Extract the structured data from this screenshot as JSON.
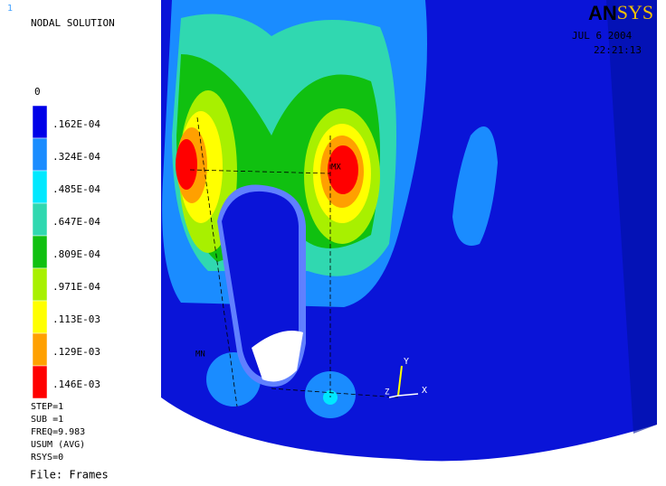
{
  "window_number": "1",
  "title": "NODAL SOLUTION",
  "logo": {
    "dark": "AN",
    "light": "SYS"
  },
  "date": "JUL  6 2004",
  "time": "22:21:13",
  "legend": {
    "top_label": "0",
    "levels": [
      {
        "label": ".162E-04",
        "color": "#0000e8"
      },
      {
        "label": ".324E-04",
        "color": "#1a8cff"
      },
      {
        "label": ".485E-04",
        "color": "#00e8ff"
      },
      {
        "label": ".647E-04",
        "color": "#30d8b0"
      },
      {
        "label": ".809E-04",
        "color": "#10c010"
      },
      {
        "label": ".971E-04",
        "color": "#a8f000"
      },
      {
        "label": ".113E-03",
        "color": "#ffff00"
      },
      {
        "label": ".129E-03",
        "color": "#ffa000"
      },
      {
        "label": ".146E-03",
        "color": "#ff0000"
      }
    ]
  },
  "info": [
    "STEP=1",
    "SUB =1",
    "FREQ=9.983",
    "USUM      (AVG)",
    "RSYS=0"
  ],
  "file": "File: Frames",
  "markers": {
    "max": "MX",
    "min": "MN"
  },
  "axes": {
    "x": "X",
    "y": "Y",
    "z": "Z"
  }
}
